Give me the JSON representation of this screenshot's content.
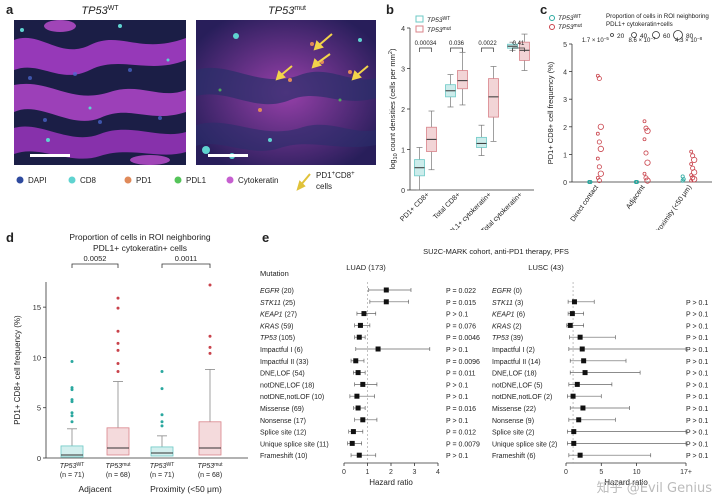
{
  "panels": {
    "a": {
      "letter": "a",
      "title_wt_gene": "TP53",
      "title_wt_sup": "WT",
      "title_mut_gene": "TP53",
      "title_mut_sup": "mut",
      "legend": [
        {
          "label": "DAPI",
          "color": "#2e4a9e"
        },
        {
          "label": "CD8",
          "color": "#5fd3d0"
        },
        {
          "label": "PD1",
          "color": "#e08a5a"
        },
        {
          "label": "PDL1",
          "color": "#55c45a"
        },
        {
          "label": "Cytokeratin",
          "color": "#c65fd0"
        }
      ],
      "arrow_label_line1": "PD1",
      "arrow_label_line1_sup": "+",
      "arrow_label_line1b": "CD8",
      "arrow_label_line2": "cells"
    },
    "b": {
      "letter": "b"
    },
    "c": {
      "letter": "c"
    },
    "d": {
      "letter": "d"
    },
    "e": {
      "letter": "e"
    }
  },
  "chart_data": [
    {
      "id": "b",
      "type": "box",
      "legend": [
        {
          "name": "TP53WT",
          "gene": "TP53",
          "sup": "WT",
          "color": "#6cc9c6"
        },
        {
          "name": "TP53mut",
          "gene": "TP53",
          "sup": "mut",
          "color": "#d9838a"
        }
      ],
      "ylabel": "log10 count densities (cells per mm²)",
      "ylabel_parts": {
        "pre": "log",
        "sub": "10",
        "post": " count densities (cells per mm",
        "sup": "2",
        "end": ")"
      },
      "ylim": [
        0,
        4
      ],
      "yticks": [
        0,
        1,
        2,
        3,
        4
      ],
      "categories": [
        "PD1+ CD8+",
        "Total CD8+",
        "PDL1+ cytokeratin+",
        "Total cytokeratin+"
      ],
      "pvalues": [
        "0.00034",
        "0.036",
        "0.0022",
        "0.41"
      ],
      "boxes": [
        {
          "group": 0,
          "series": "TP53WT",
          "q1": 0.35,
          "median": 0.55,
          "q3": 0.75,
          "whisker_low": 0.0,
          "whisker_high": 1.05
        },
        {
          "group": 0,
          "series": "TP53mut",
          "q1": 0.95,
          "median": 1.25,
          "q3": 1.55,
          "whisker_low": 0.5,
          "whisker_high": 1.95
        },
        {
          "group": 1,
          "series": "TP53WT",
          "q1": 2.3,
          "median": 2.45,
          "q3": 2.6,
          "whisker_low": 2.05,
          "whisker_high": 2.85
        },
        {
          "group": 1,
          "series": "TP53mut",
          "q1": 2.5,
          "median": 2.7,
          "q3": 2.95,
          "whisker_low": 2.1,
          "whisker_high": 3.4
        },
        {
          "group": 2,
          "series": "TP53WT",
          "q1": 1.05,
          "median": 1.15,
          "q3": 1.3,
          "whisker_low": 0.85,
          "whisker_high": 1.6
        },
        {
          "group": 2,
          "series": "TP53mut",
          "q1": 1.8,
          "median": 2.3,
          "q3": 2.75,
          "whisker_low": 1.2,
          "whisker_high": 3.05
        },
        {
          "group": 3,
          "series": "TP53WT",
          "q1": 3.5,
          "median": 3.55,
          "q3": 3.6,
          "whisker_low": 3.45,
          "whisker_high": 3.65
        },
        {
          "group": 3,
          "series": "TP53mut",
          "q1": 3.2,
          "median": 3.45,
          "q3": 3.65,
          "whisker_low": 2.95,
          "whisker_high": 3.85
        }
      ]
    },
    {
      "id": "c",
      "type": "scatter",
      "legend_series": [
        {
          "name": "TP53WT",
          "gene": "TP53",
          "sup": "WT",
          "color": "#2aa89f"
        },
        {
          "name": "TP53mut",
          "gene": "TP53",
          "sup": "mut",
          "color": "#c9424b"
        }
      ],
      "size_legend_title": "Proportion of cells in ROI neighboring PDL1+ cytokeratin+ cells",
      "size_legend_title_line1": "Proportion of cells in ROI neighboring",
      "size_legend_title_line2": "PDL1+ cytokeratin+cells",
      "size_legend_values": [
        "20",
        "40",
        "60",
        "80"
      ],
      "ylabel": "PD1+ CD8+ cell frequency (%)",
      "ylim": [
        0,
        5
      ],
      "yticks": [
        0,
        1,
        2,
        3,
        4,
        5
      ],
      "categories": [
        "Direct contact",
        "Adjacent",
        "Proximity (<50 μm)"
      ],
      "pvalues": [
        {
          "mant": "1.7 × 10",
          "exp": "−5"
        },
        {
          "mant": "8.6 × 10",
          "exp": "−7"
        },
        {
          "mant": "4.3 × 10",
          "exp": "−8"
        }
      ],
      "points": {
        "Direct contact": {
          "wt": [
            0,
            0,
            0,
            0
          ],
          "mut": [
            3.85,
            3.75,
            2.0,
            1.75,
            1.45,
            1.2,
            0.85,
            0.55,
            0.3,
            0.15,
            0.05
          ]
        },
        "Adjacent": {
          "wt": [
            0,
            0,
            0
          ],
          "mut": [
            2.2,
            1.95,
            1.85,
            1.55,
            1.05,
            0.7,
            0.3,
            0.15,
            0.05
          ]
        },
        "Proximity (<50 μm)": {
          "wt": [
            0.2,
            0.1,
            0.05
          ],
          "mut": [
            1.1,
            0.95,
            0.8,
            0.65,
            0.5,
            0.35,
            0.25,
            0.15,
            0.1,
            0.05
          ]
        }
      }
    },
    {
      "id": "d",
      "type": "box",
      "title_line1": "Proportion of cells in ROI neighboring",
      "title_line2": "PDL1+ cytokeratin+ cells",
      "ylabel": "PD1+ CD8+ cell frequency (%)",
      "ylim": [
        0,
        17.5
      ],
      "yticks": [
        0,
        5,
        10,
        15
      ],
      "groups": [
        "Adjacent",
        "Proximity (<50 μm)"
      ],
      "pvalues": [
        "0.0052",
        "0.0011"
      ],
      "tick_labels": [
        {
          "gene": "TP53",
          "sup": "WT",
          "n": "(n = 71)"
        },
        {
          "gene": "TP53",
          "sup": "mut",
          "n": "(n = 68)"
        },
        {
          "gene": "TP53",
          "sup": "WT",
          "n": "(n = 71)"
        },
        {
          "gene": "TP53",
          "sup": "mut",
          "n": "(n = 68)"
        }
      ],
      "boxes": [
        {
          "series": "TP53WT",
          "q1": 0.1,
          "median": 0.3,
          "q3": 1.2,
          "whisker_low": 0,
          "whisker_high": 2.9,
          "outliers": [
            9.6,
            7.0,
            6.8,
            5.8,
            5.6,
            4.5,
            4.2,
            3.6
          ]
        },
        {
          "series": "TP53mut",
          "q1": 0.3,
          "median": 1.0,
          "q3": 3.0,
          "whisker_low": 0,
          "whisker_high": 7.6,
          "outliers": [
            15.9,
            14.9,
            12.6,
            11.4,
            10.7,
            9.4,
            8.6
          ]
        },
        {
          "series": "TP53WT",
          "q1": 0.2,
          "median": 0.5,
          "q3": 1.1,
          "whisker_low": 0,
          "whisker_high": 2.2,
          "outliers": [
            8.6,
            6.9,
            4.3,
            3.6,
            3.2
          ]
        },
        {
          "series": "TP53mut",
          "q1": 0.3,
          "median": 1.0,
          "q3": 3.6,
          "whisker_low": 0,
          "whisker_high": 8.8,
          "outliers": [
            17.2,
            12.1,
            11.0,
            10.4
          ]
        }
      ],
      "colors": {
        "TP53WT": "#6cc9c6",
        "TP53mut": "#d9838a",
        "outlier_wt": "#2aa89f",
        "outlier_mut": "#c9424b"
      }
    },
    {
      "id": "e",
      "type": "forest",
      "title": "SU2C-MARK cohort, anti-PD1 therapy, PFS",
      "mutation_header": "Mutation",
      "luad": {
        "title": "LUAD (173)",
        "xlabel": "Hazard ratio",
        "xlim": [
          0,
          4
        ],
        "xticks": [
          0,
          1,
          2,
          3,
          4
        ],
        "rows": [
          {
            "label": "EGFR (20)",
            "italic_part": "EGFR",
            "rest": " (20)",
            "hr": 1.8,
            "lo": 1.05,
            "hi": 2.85,
            "p": "P = 0.022"
          },
          {
            "label": "STK11 (25)",
            "italic_part": "STK11",
            "rest": " (25)",
            "hr": 1.8,
            "lo": 1.1,
            "hi": 2.75,
            "p": "P = 0.015"
          },
          {
            "label": "KEAP1 (27)",
            "italic_part": "KEAP1",
            "rest": " (27)",
            "hr": 0.85,
            "lo": 0.55,
            "hi": 1.35,
            "p": "P > 0.1"
          },
          {
            "label": "KRAS (59)",
            "italic_part": "KRAS",
            "rest": " (59)",
            "hr": 0.7,
            "lo": 0.45,
            "hi": 1.1,
            "p": "P = 0.076"
          },
          {
            "label": "TP53 (105)",
            "italic_part": "TP53",
            "rest": " (105)",
            "hr": 0.65,
            "lo": 0.45,
            "hi": 0.9,
            "p": "P = 0.0046"
          },
          {
            "label": "Impactful I (6)",
            "italic_part": "",
            "rest": "Impactful I (6)",
            "hr": 1.45,
            "lo": 0.5,
            "hi": 3.65,
            "p": "P > 0.1"
          },
          {
            "label": "Impactful II (33)",
            "italic_part": "",
            "rest": "Impactful II (33)",
            "hr": 0.5,
            "lo": 0.3,
            "hi": 0.85,
            "p": "P = 0.0096"
          },
          {
            "label": "DNE,LOF (54)",
            "italic_part": "",
            "rest": "DNE,LOF (54)",
            "hr": 0.6,
            "lo": 0.4,
            "hi": 0.9,
            "p": "P = 0.011"
          },
          {
            "label": "notDNE,LOF (18)",
            "italic_part": "",
            "rest": "notDNE,LOF (18)",
            "hr": 0.8,
            "lo": 0.45,
            "hi": 1.4,
            "p": "P > 0.1"
          },
          {
            "label": "notDNE,notLOF (10)",
            "italic_part": "",
            "rest": "notDNE,notLOF (10)",
            "hr": 0.55,
            "lo": 0.25,
            "hi": 1.3,
            "p": "P > 0.1"
          },
          {
            "label": "Missense (69)",
            "italic_part": "",
            "rest": "Missense (69)",
            "hr": 0.6,
            "lo": 0.4,
            "hi": 0.9,
            "p": "P = 0.016"
          },
          {
            "label": "Nonsense (17)",
            "italic_part": "",
            "rest": "Nonsense (17)",
            "hr": 0.8,
            "lo": 0.45,
            "hi": 1.4,
            "p": "P > 0.1"
          },
          {
            "label": "Splice site (12)",
            "italic_part": "",
            "rest": "Splice site (12)",
            "hr": 0.4,
            "lo": 0.2,
            "hi": 0.8,
            "p": "P = 0.012"
          },
          {
            "label": "Unique splice site (11)",
            "italic_part": "",
            "rest": "Unique splice site (11)",
            "hr": 0.35,
            "lo": 0.15,
            "hi": 0.75,
            "p": "P = 0.0079"
          },
          {
            "label": "Frameshift (10)",
            "italic_part": "",
            "rest": "Frameshift (10)",
            "hr": 0.65,
            "lo": 0.3,
            "hi": 1.35,
            "p": "P > 0.1"
          }
        ]
      },
      "lusc": {
        "title": "LUSC (43)",
        "xlabel": "Hazard ratio",
        "xlim": [
          0,
          17
        ],
        "xticks": [
          "0",
          "5",
          "10",
          "17+"
        ],
        "xtick_values": [
          0,
          5,
          10,
          17
        ],
        "rows": [
          {
            "label": "EGFR (0)",
            "italic_part": "EGFR",
            "rest": " (0)",
            "hr": null,
            "lo": null,
            "hi": null,
            "p": ""
          },
          {
            "label": "STK11 (3)",
            "italic_part": "STK11",
            "rest": " (3)",
            "hr": 1.2,
            "lo": 0.3,
            "hi": 4.0,
            "p": "P > 0.1"
          },
          {
            "label": "KEAP1 (6)",
            "italic_part": "KEAP1",
            "rest": " (6)",
            "hr": 0.9,
            "lo": 0.3,
            "hi": 2.5,
            "p": "P > 0.1"
          },
          {
            "label": "KRAS (2)",
            "italic_part": "KRAS",
            "rest": " (2)",
            "hr": 0.6,
            "lo": 0.1,
            "hi": 2.5,
            "p": "P > 0.1"
          },
          {
            "label": "TP53 (39)",
            "italic_part": "TP53",
            "rest": " (39)",
            "hr": 2.0,
            "lo": 0.5,
            "hi": 7.0,
            "p": "P > 0.1"
          },
          {
            "label": "Impactful I (2)",
            "italic_part": "",
            "rest": "Impactful I (2)",
            "hr": 2.3,
            "lo": 0.4,
            "hi": 17,
            "p": "P > 0.1"
          },
          {
            "label": "Impactful II (14)",
            "italic_part": "",
            "rest": "Impactful II (14)",
            "hr": 2.5,
            "lo": 0.6,
            "hi": 8.5,
            "p": "P > 0.1"
          },
          {
            "label": "DNE,LOF (18)",
            "italic_part": "",
            "rest": "DNE,LOF (18)",
            "hr": 2.7,
            "lo": 0.6,
            "hi": 10.5,
            "p": "P > 0.1"
          },
          {
            "label": "notDNE,LOF (5)",
            "italic_part": "",
            "rest": "notDNE,LOF (5)",
            "hr": 1.6,
            "lo": 0.4,
            "hi": 6.5,
            "p": "P > 0.1"
          },
          {
            "label": "notDNE,notLOF (2)",
            "italic_part": "",
            "rest": "notDNE,notLOF (2)",
            "hr": 1.0,
            "lo": 0.2,
            "hi": 5.0,
            "p": "P > 0.1"
          },
          {
            "label": "Missense (22)",
            "italic_part": "",
            "rest": "Missense (22)",
            "hr": 2.4,
            "lo": 0.6,
            "hi": 9.0,
            "p": "P > 0.1"
          },
          {
            "label": "Nonsense (9)",
            "italic_part": "",
            "rest": "Nonsense (9)",
            "hr": 1.8,
            "lo": 0.4,
            "hi": 7.0,
            "p": "P > 0.1"
          },
          {
            "label": "Splice site (2)",
            "italic_part": "",
            "rest": "Splice site (2)",
            "hr": 1.1,
            "lo": 0.2,
            "hi": 17,
            "p": "P > 0.1"
          },
          {
            "label": "Unique splice site (2)",
            "italic_part": "",
            "rest": "Unique splice site (2)",
            "hr": 1.1,
            "lo": 0.2,
            "hi": 17,
            "p": "P > 0.1"
          },
          {
            "label": "Frameshift (6)",
            "italic_part": "",
            "rest": "Frameshift (6)",
            "hr": 2.0,
            "lo": 0.4,
            "hi": 12.0,
            "p": "P > 0.1"
          }
        ]
      }
    }
  ],
  "watermark": "知乎 @Evil Genius"
}
